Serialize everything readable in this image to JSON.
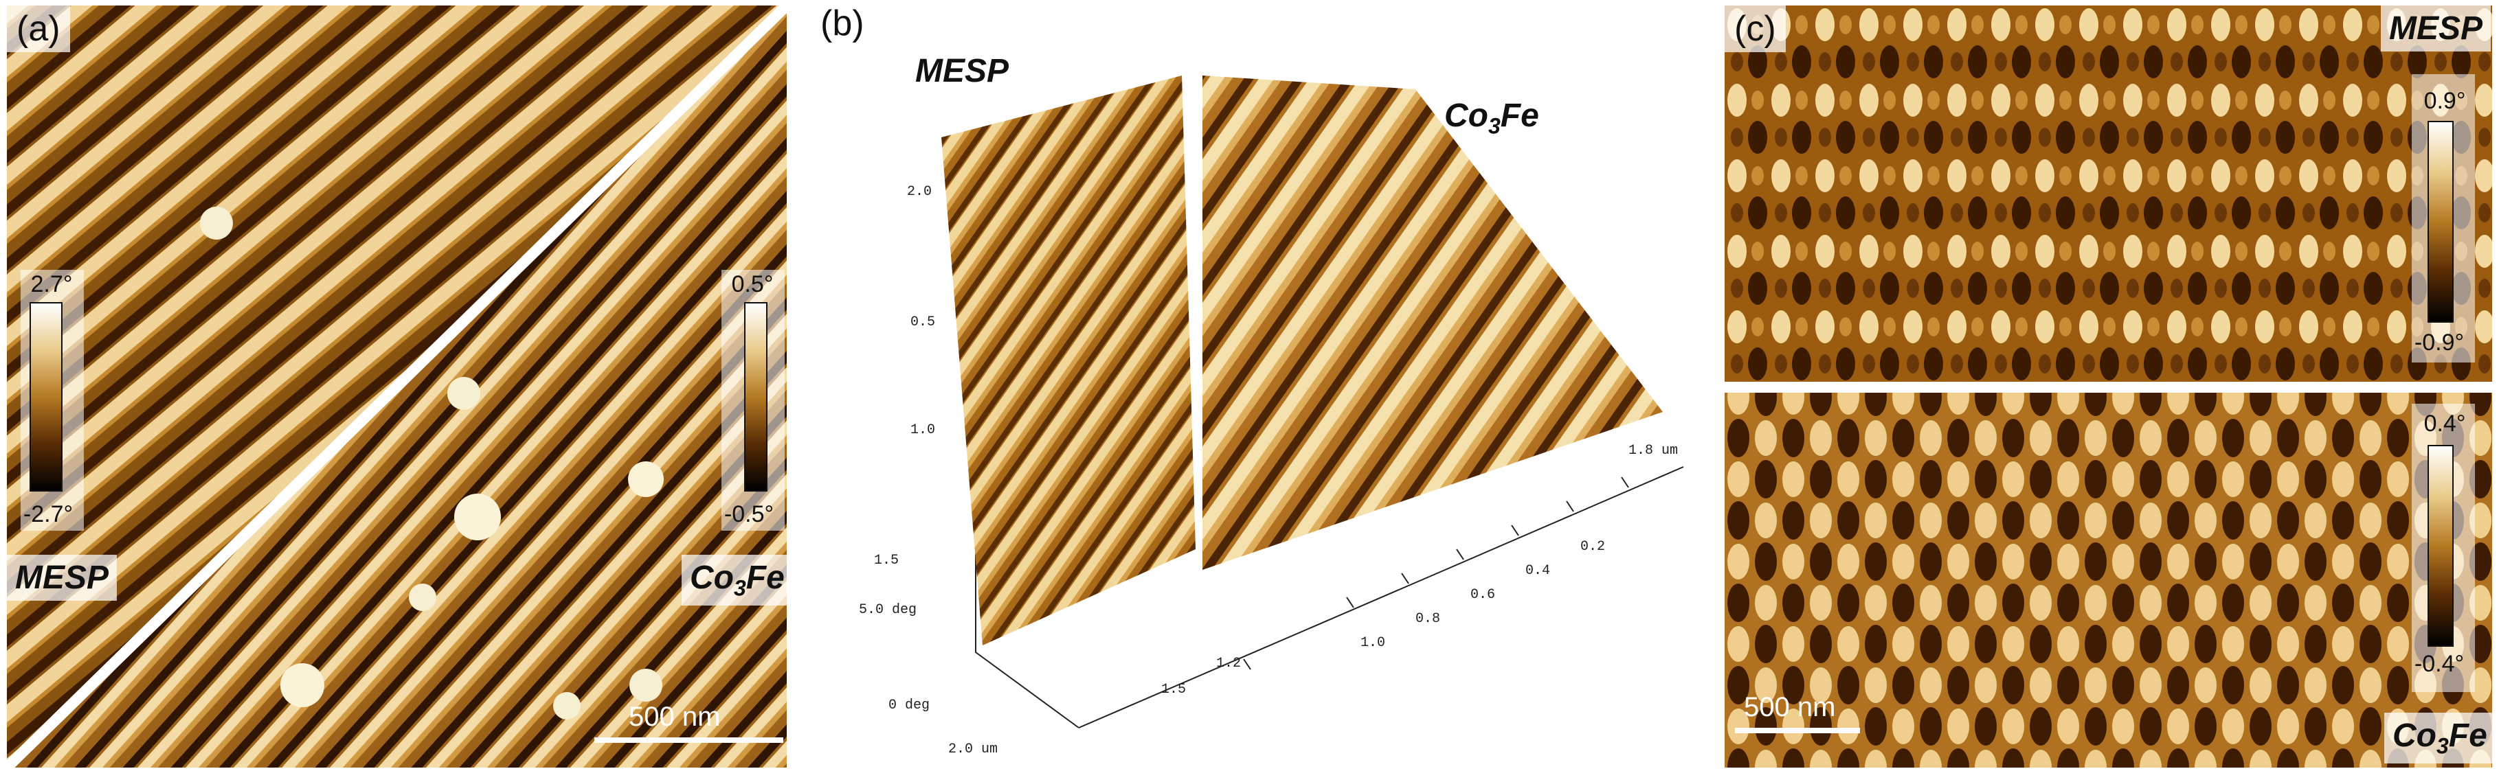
{
  "panel_a": {
    "label": "(a)",
    "left_material": "MESP",
    "right_material_main": "Co",
    "right_material_sub": "3",
    "right_material_tail": "Fe",
    "left_colorbar": {
      "max": "2.7°",
      "min": "-2.7°"
    },
    "right_colorbar": {
      "max": "0.5°",
      "min": "-0.5°"
    },
    "scale_bar": "500 nm"
  },
  "panel_b": {
    "label": "(b)",
    "left_material": "MESP",
    "right_material_main": "Co",
    "right_material_sub": "3",
    "right_material_tail": "Fe",
    "left_axis_ticks": [
      "2.0",
      "0.5",
      "1.0",
      "1.5"
    ],
    "z_ticks": [
      "5.0 deg",
      "0 deg"
    ],
    "bottom_left_tick": "2.0 um",
    "front_axis_ticks": [
      "1.5"
    ],
    "right_axis_ticks": [
      "1.8 um",
      "0.2",
      "0.4",
      "0.6",
      "0.8",
      "1.0",
      "1.2"
    ]
  },
  "panel_c": {
    "label": "(c)",
    "top_material": "MESP",
    "bottom_material_main": "Co",
    "bottom_material_sub": "3",
    "bottom_material_tail": "Fe",
    "top_colorbar": {
      "max": "0.9°",
      "min": "-0.9°"
    },
    "bottom_colorbar": {
      "max": "0.4°",
      "min": "-0.4°"
    },
    "scale_bar": "500 nm"
  },
  "colors": {
    "stripe_light": "#f0d9a0",
    "stripe_mid": "#b57a22",
    "stripe_dark": "#3a1a02",
    "divider": "#ffffff"
  }
}
